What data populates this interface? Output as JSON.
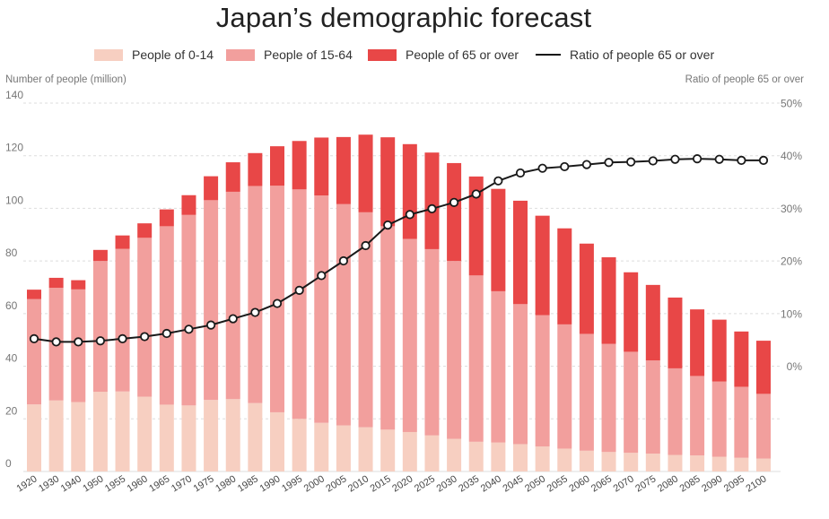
{
  "colors": {
    "age_0_14": "#f7cfc1",
    "age_15_64": "#f29f9d",
    "age_65_plus": "#e84747",
    "ratio_line": "#1a1a1a",
    "grid": "#dddddd",
    "tick_text": "#777777"
  },
  "chart_data": {
    "type": "bar",
    "stacked": true,
    "title": "Japan’s demographic forecast",
    "ylabel": "Number of people (million)",
    "y2label": "Ratio of people 65 or over",
    "ylim": [
      0,
      140
    ],
    "y2lim": [
      -10,
      50
    ],
    "yticks": [
      "0",
      "20",
      "40",
      "60",
      "80",
      "100",
      "120",
      "140"
    ],
    "y2ticks": [
      "0%",
      "10%",
      "20%",
      "30%",
      "40%",
      "50%"
    ],
    "grid": true,
    "legend_position": "top",
    "categories": [
      "1920",
      "1930",
      "1940",
      "1950",
      "1955",
      "1960",
      "1965",
      "1970",
      "1975",
      "1980",
      "1985",
      "1990",
      "1995",
      "2000",
      "2005",
      "2010",
      "2015",
      "2020",
      "2025",
      "2030",
      "2035",
      "2040",
      "2045",
      "2050",
      "2055",
      "2060",
      "2065",
      "2070",
      "2075",
      "2080",
      "2085",
      "2090",
      "2095",
      "2100"
    ],
    "series": [
      {
        "name": "People of 0-14",
        "values": [
          25.5,
          27,
          26.4,
          30.3,
          30.4,
          28.4,
          25.4,
          25.1,
          27.2,
          27.5,
          26.0,
          22.5,
          20.0,
          18.5,
          17.5,
          16.8,
          15.9,
          15.0,
          13.7,
          12.4,
          11.3,
          11.0,
          10.4,
          9.5,
          8.7,
          7.9,
          7.4,
          7.1,
          6.8,
          6.3,
          6.1,
          5.6,
          5.2,
          4.9
        ]
      },
      {
        "name": "People of 15-64",
        "values": [
          40.0,
          42.8,
          42.8,
          49.7,
          54.2,
          60.4,
          67.8,
          72.4,
          75.9,
          78.8,
          82.5,
          86.1,
          87.2,
          86.4,
          84.1,
          81.7,
          77.3,
          73.4,
          70.8,
          67.6,
          63.2,
          57.5,
          53.2,
          49.9,
          47.2,
          44.4,
          41.1,
          38.4,
          35.4,
          32.9,
          30.2,
          28.6,
          27.0,
          24.6
        ]
      },
      {
        "name": "People of 65 or over",
        "values": [
          3.6,
          3.8,
          3.5,
          4.2,
          5.1,
          5.5,
          6.4,
          7.5,
          9.1,
          11.2,
          12.5,
          15.0,
          18.4,
          22.0,
          25.5,
          29.5,
          33.8,
          36.0,
          36.7,
          37.2,
          37.6,
          38.9,
          39.3,
          37.8,
          36.5,
          34.3,
          32.9,
          30.2,
          28.7,
          26.9,
          25.3,
          23.5,
          21.0,
          20.2
        ]
      },
      {
        "name": "Ratio of people 65 or over",
        "type": "line",
        "axis": "right",
        "values": [
          5.3,
          4.7,
          4.7,
          4.9,
          5.3,
          5.7,
          6.3,
          7.1,
          7.9,
          9.1,
          10.3,
          12.0,
          14.5,
          17.3,
          20.1,
          23.0,
          26.9,
          28.9,
          30.0,
          31.2,
          32.8,
          35.3,
          36.8,
          37.7,
          38.0,
          38.4,
          38.8,
          38.9,
          39.1,
          39.4,
          39.5,
          39.4,
          39.2,
          39.2
        ]
      }
    ]
  }
}
